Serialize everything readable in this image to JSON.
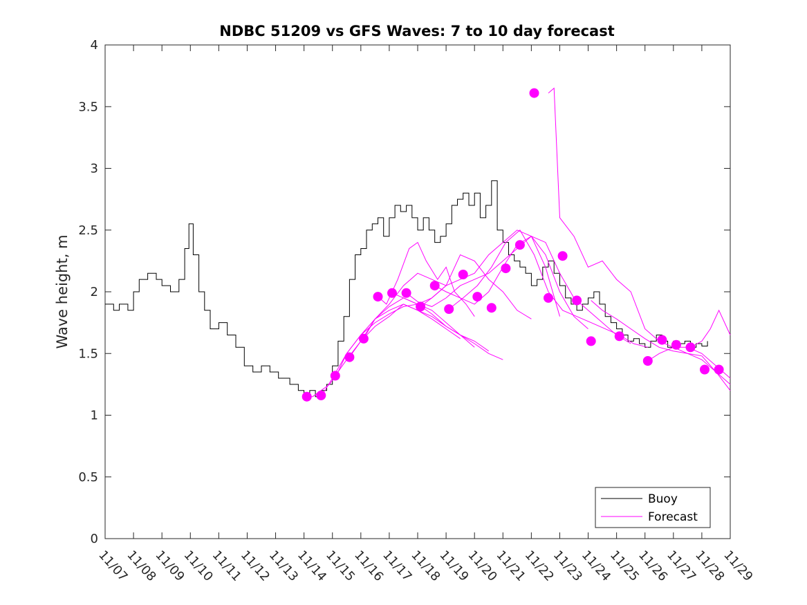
{
  "chart_data": {
    "type": "line",
    "title": "NDBC 51209 vs GFS Waves: 7 to 10 day forecast",
    "xlabel": "",
    "ylabel": "Wave height, m",
    "xlim": [
      0,
      22
    ],
    "ylim": [
      0,
      4
    ],
    "x_tick_labels": [
      "11/07",
      "11/08",
      "11/09",
      "11/10",
      "11/11",
      "11/12",
      "11/13",
      "11/14",
      "11/15",
      "11/16",
      "11/17",
      "11/18",
      "11/19",
      "11/20",
      "11/21",
      "11/22",
      "11/23",
      "11/24",
      "11/25",
      "11/26",
      "11/27",
      "11/28",
      "11/29"
    ],
    "y_ticks": [
      0,
      0.5,
      1,
      1.5,
      2,
      2.5,
      3,
      3.5,
      4
    ],
    "y_tick_labels": [
      "0",
      "0.5",
      "1",
      "1.5",
      "2",
      "2.5",
      "3",
      "3.5",
      "4"
    ],
    "legend": {
      "position": "bottom-right",
      "entries": [
        "Buoy",
        "Forecast"
      ]
    },
    "colors": {
      "buoy": "#000000",
      "forecast": "#ff00ff"
    },
    "series": [
      {
        "name": "Buoy",
        "x": [
          0,
          0.3,
          0.5,
          0.8,
          1.0,
          1.2,
          1.5,
          1.8,
          2.0,
          2.3,
          2.6,
          2.8,
          2.95,
          3.1,
          3.3,
          3.5,
          3.7,
          4.0,
          4.3,
          4.6,
          4.9,
          5.2,
          5.5,
          5.8,
          6.1,
          6.5,
          6.8,
          7.0,
          7.2,
          7.4,
          7.6,
          7.8,
          8.0,
          8.2,
          8.4,
          8.6,
          8.8,
          9.0,
          9.2,
          9.4,
          9.6,
          9.8,
          10.0,
          10.2,
          10.4,
          10.6,
          10.8,
          11.0,
          11.2,
          11.4,
          11.6,
          11.8,
          12.0,
          12.2,
          12.4,
          12.6,
          12.8,
          13.0,
          13.2,
          13.4,
          13.6,
          13.8,
          14.0,
          14.2,
          14.4,
          14.6,
          14.8,
          15.0,
          15.2,
          15.4,
          15.6,
          15.8,
          16.0,
          16.2,
          16.4,
          16.6,
          16.8,
          17.0,
          17.2,
          17.4,
          17.6,
          17.8,
          18.0,
          18.2,
          18.4,
          18.6,
          18.8,
          19.0,
          19.2,
          19.4,
          19.6,
          19.8,
          20.0,
          20.2,
          20.4,
          20.6,
          20.8,
          21.0,
          21.2
        ],
        "y": [
          1.9,
          1.85,
          1.9,
          1.85,
          2.0,
          2.1,
          2.15,
          2.1,
          2.05,
          2.0,
          2.1,
          2.35,
          2.55,
          2.3,
          2.0,
          1.85,
          1.7,
          1.75,
          1.65,
          1.55,
          1.4,
          1.35,
          1.4,
          1.35,
          1.3,
          1.25,
          1.2,
          1.15,
          1.2,
          1.15,
          1.2,
          1.25,
          1.4,
          1.6,
          1.8,
          2.1,
          2.3,
          2.35,
          2.5,
          2.55,
          2.6,
          2.45,
          2.6,
          2.7,
          2.65,
          2.7,
          2.6,
          2.5,
          2.6,
          2.5,
          2.4,
          2.45,
          2.55,
          2.7,
          2.75,
          2.8,
          2.7,
          2.8,
          2.6,
          2.7,
          2.9,
          2.5,
          2.4,
          2.3,
          2.25,
          2.2,
          2.15,
          2.05,
          2.1,
          2.2,
          2.25,
          2.15,
          2.05,
          1.95,
          1.9,
          1.85,
          1.9,
          1.95,
          2.0,
          1.9,
          1.8,
          1.75,
          1.7,
          1.65,
          1.6,
          1.62,
          1.58,
          1.55,
          1.6,
          1.65,
          1.6,
          1.55,
          1.6,
          1.58,
          1.6,
          1.55,
          1.58,
          1.56,
          1.6
        ]
      },
      {
        "name": "Forecast",
        "runs": [
          {
            "x": [
              7.1,
              7.3,
              7.6,
              7.9,
              8.2,
              8.5,
              9.0,
              9.5,
              10.0,
              10.5,
              11.0,
              11.5,
              12.0,
              12.5,
              13.0,
              13.5,
              14.0
            ],
            "y": [
              1.15,
              1.15,
              1.2,
              1.25,
              1.35,
              1.5,
              1.65,
              1.78,
              1.85,
              1.9,
              1.85,
              1.8,
              1.72,
              1.65,
              1.58,
              1.5,
              1.45
            ]
          },
          {
            "x": [
              7.6,
              8.0,
              8.5,
              9.0,
              9.5,
              10.0,
              10.5,
              11.0,
              11.5,
              12.0,
              12.5,
              13.0,
              13.5
            ],
            "y": [
              1.15,
              1.3,
              1.5,
              1.65,
              1.75,
              1.82,
              1.88,
              1.9,
              1.82,
              1.72,
              1.65,
              1.6,
              1.52
            ]
          },
          {
            "x": [
              8.1,
              8.5,
              9.0,
              9.5,
              10.0,
              10.5,
              11.0,
              11.5,
              12.0,
              12.5,
              13.0
            ],
            "y": [
              1.32,
              1.45,
              1.6,
              1.78,
              1.88,
              1.95,
              1.9,
              1.85,
              1.75,
              1.65,
              1.55
            ]
          },
          {
            "x": [
              8.6,
              9.0,
              9.5,
              10.0,
              10.5,
              11.0,
              11.5,
              12.0,
              12.5
            ],
            "y": [
              1.47,
              1.6,
              1.72,
              1.8,
              1.9,
              1.85,
              1.78,
              1.7,
              1.62
            ]
          },
          {
            "x": [
              9.1,
              9.5,
              10.0,
              10.5,
              11.0,
              11.5,
              12.0
            ],
            "y": [
              1.62,
              1.78,
              1.9,
              2.05,
              2.15,
              2.1,
              2.05
            ]
          },
          {
            "x": [
              9.6,
              9.9,
              10.3,
              10.7,
              11.0,
              11.3,
              11.7,
              12.0,
              12.3,
              12.7,
              13.0
            ],
            "y": [
              1.96,
              1.9,
              2.1,
              2.35,
              2.4,
              2.25,
              2.1,
              2.2,
              2.0,
              1.9,
              1.8
            ]
          },
          {
            "x": [
              10.1,
              10.5,
              11.0,
              11.5,
              12.0,
              12.5,
              13.0,
              13.5,
              14.0,
              14.5,
              15.0
            ],
            "y": [
              1.99,
              1.95,
              1.9,
              1.95,
              2.05,
              2.3,
              2.25,
              2.1,
              2.0,
              1.85,
              1.78
            ]
          },
          {
            "x": [
              10.6,
              11.0,
              11.5,
              12.0,
              12.5,
              13.0,
              13.5,
              14.0,
              14.5,
              15.0,
              15.5,
              16.0
            ],
            "y": [
              1.99,
              1.92,
              1.88,
              1.95,
              2.05,
              2.1,
              2.15,
              2.25,
              2.35,
              2.45,
              2.2,
              1.8
            ]
          },
          {
            "x": [
              11.1,
              11.5,
              12.0,
              12.5,
              13.0,
              13.5,
              14.0,
              14.5,
              15.0,
              15.5,
              16.0,
              16.5,
              17.0
            ],
            "y": [
              1.88,
              1.95,
              2.05,
              2.1,
              2.15,
              2.3,
              2.4,
              2.5,
              2.45,
              2.3,
              2.0,
              1.8,
              1.7
            ]
          },
          {
            "x": [
              11.6,
              12.0,
              12.5,
              13.0,
              13.5,
              14.0,
              14.5,
              15.0,
              15.5,
              16.0,
              16.5,
              17.0,
              17.5,
              18.0,
              18.5
            ],
            "y": [
              2.05,
              2.0,
              1.95,
              1.9,
              2.0,
              2.2,
              2.38,
              2.45,
              2.4,
              2.15,
              1.95,
              1.85,
              1.75,
              1.65,
              1.58
            ]
          },
          {
            "x": [
              12.1,
              12.6,
              13.1,
              13.6,
              14.1,
              14.6,
              15.1,
              15.6,
              16.1,
              16.6,
              17.1,
              17.6,
              18.1,
              18.6,
              19.1
            ],
            "y": [
              1.86,
              1.95,
              2.05,
              2.2,
              2.4,
              2.5,
              2.3,
              2.0,
              1.85,
              1.8,
              1.75,
              1.7,
              1.65,
              1.58,
              1.55
            ]
          },
          {
            "x": [
              15.6,
              15.8,
              16.0,
              16.5,
              17.0,
              17.5,
              18.0,
              18.5,
              19.0,
              19.5,
              20.0,
              20.5,
              21.0,
              21.5,
              22.0
            ],
            "y": [
              3.61,
              3.65,
              2.6,
              2.45,
              2.2,
              2.25,
              2.1,
              2.0,
              1.7,
              1.6,
              1.55,
              1.55,
              1.5,
              1.4,
              1.3
            ]
          },
          {
            "x": [
              17.1,
              17.5,
              18.0,
              18.5,
              19.0,
              19.5,
              20.0,
              20.5,
              21.0,
              21.5,
              22.0
            ],
            "y": [
              1.93,
              1.85,
              1.78,
              1.7,
              1.62,
              1.55,
              1.52,
              1.5,
              1.48,
              1.35,
              1.25
            ]
          },
          {
            "x": [
              19.1,
              19.5,
              20.0,
              20.5,
              21.0,
              21.5,
              22.0
            ],
            "y": [
              1.44,
              1.5,
              1.55,
              1.5,
              1.45,
              1.35,
              1.2
            ]
          },
          {
            "x": [
              20.6,
              21.0,
              21.3,
              21.6,
              22.0
            ],
            "y": [
              1.55,
              1.6,
              1.7,
              1.85,
              1.65
            ]
          }
        ],
        "markers": [
          {
            "x": 7.1,
            "y": 1.15
          },
          {
            "x": 7.6,
            "y": 1.16
          },
          {
            "x": 8.1,
            "y": 1.32
          },
          {
            "x": 8.6,
            "y": 1.47
          },
          {
            "x": 9.1,
            "y": 1.62
          },
          {
            "x": 9.6,
            "y": 1.96
          },
          {
            "x": 10.1,
            "y": 1.99
          },
          {
            "x": 10.6,
            "y": 1.99
          },
          {
            "x": 11.1,
            "y": 1.88
          },
          {
            "x": 11.6,
            "y": 2.05
          },
          {
            "x": 12.1,
            "y": 1.86
          },
          {
            "x": 12.6,
            "y": 2.14
          },
          {
            "x": 13.1,
            "y": 1.96
          },
          {
            "x": 13.6,
            "y": 1.87
          },
          {
            "x": 14.1,
            "y": 2.19
          },
          {
            "x": 14.6,
            "y": 2.38
          },
          {
            "x": 15.1,
            "y": 3.61
          },
          {
            "x": 15.6,
            "y": 1.95
          },
          {
            "x": 16.1,
            "y": 2.29
          },
          {
            "x": 16.6,
            "y": 1.93
          },
          {
            "x": 17.1,
            "y": 1.6
          },
          {
            "x": 18.1,
            "y": 1.64
          },
          {
            "x": 19.1,
            "y": 1.44
          },
          {
            "x": 19.6,
            "y": 1.61
          },
          {
            "x": 20.1,
            "y": 1.57
          },
          {
            "x": 20.6,
            "y": 1.55
          },
          {
            "x": 21.1,
            "y": 1.37
          },
          {
            "x": 21.6,
            "y": 1.37
          }
        ]
      }
    ]
  }
}
